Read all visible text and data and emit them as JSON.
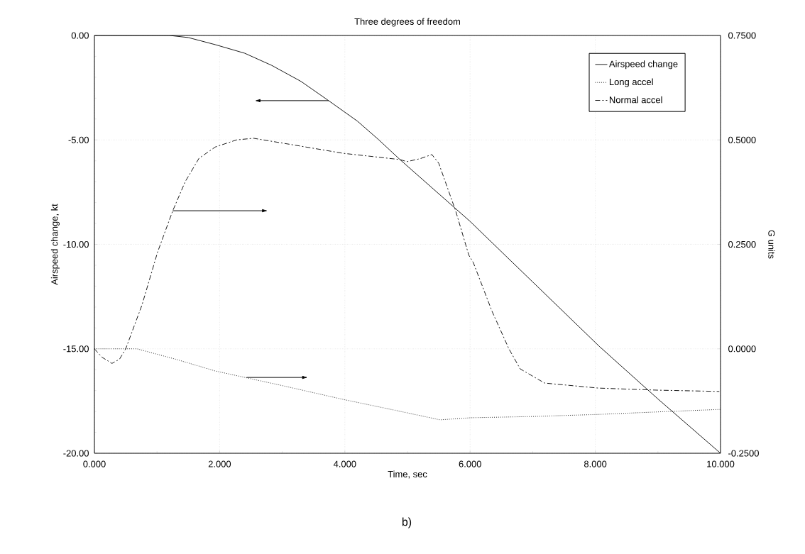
{
  "chart_data": {
    "type": "line",
    "title": "Three degrees of freedom",
    "xlabel": "Time, sec",
    "ylabel": "Airspeed change, kt",
    "y2label": "G units",
    "annotations": [
      "b)"
    ],
    "xlim": [
      0,
      10
    ],
    "xticks": [
      {
        "value": 0,
        "label": "0.000"
      },
      {
        "value": 2,
        "label": "2.000"
      },
      {
        "value": 4,
        "label": "4.000"
      },
      {
        "value": 6,
        "label": "6.000"
      },
      {
        "value": 8,
        "label": "8.000"
      },
      {
        "value": 10,
        "label": "10.000"
      }
    ],
    "ylim": [
      -20,
      0
    ],
    "yticks": [
      {
        "value": -20,
        "label": "-20.00"
      },
      {
        "value": -15,
        "label": "-15.00"
      },
      {
        "value": -10,
        "label": "-10.00"
      },
      {
        "value": -5,
        "label": "-5.00"
      },
      {
        "value": 0,
        "label": "0.00"
      }
    ],
    "y2lim": [
      -0.25,
      0.75
    ],
    "y2ticks": [
      {
        "value": -0.25,
        "label": "-0.2500"
      },
      {
        "value": 0,
        "label": "0.0000"
      },
      {
        "value": 0.25,
        "label": "0.2500"
      },
      {
        "value": 0.5,
        "label": "0.5000"
      },
      {
        "value": 0.75,
        "label": "0.7500"
      }
    ],
    "grid": true,
    "legend": "top right",
    "marker": "none",
    "series": [
      {
        "name": "Airspeed change",
        "color": "#000000",
        "line_style": "solid",
        "x": [
          0,
          1.2,
          1.5,
          1.93,
          2.4,
          2.83,
          3.3,
          3.74,
          4.2,
          4.54,
          4.88,
          6,
          7,
          8.07,
          9,
          10
        ],
        "values": [
          0,
          0,
          -0.1,
          -0.44,
          -0.85,
          -1.43,
          -2.2,
          -3.12,
          -4.1,
          -4.99,
          -5.94,
          -8.9,
          -11.8,
          -14.9,
          -17.4,
          -20
        ]
      },
      {
        "name": "Long accel",
        "color": "#000000",
        "line_style": "dotted",
        "axis": "y2",
        "x": [
          0,
          0.68,
          1.3,
          1.93,
          3,
          3.97,
          4.8,
          5.52,
          6.01,
          7,
          8.05,
          9,
          10
        ],
        "values": [
          0,
          0,
          -0.025,
          -0.053,
          -0.088,
          -0.121,
          -0.147,
          -0.17,
          -0.165,
          -0.162,
          -0.157,
          -0.151,
          -0.145
        ]
      },
      {
        "name": "Normal accel",
        "color": "#000000",
        "line_style": "dashdot",
        "axis": "y2",
        "x": [
          0,
          0.12,
          0.28,
          0.4,
          0.5,
          0.76,
          1.01,
          1.25,
          1.45,
          1.67,
          1.93,
          2.27,
          2.54,
          3.22,
          3.97,
          4.88,
          4.99,
          5.2,
          5.39,
          5.5,
          5.77,
          5.98,
          6.05,
          6.35,
          6.62,
          6.8,
          7.19,
          8.05,
          9,
          9.98
        ],
        "values": [
          0,
          -0.02,
          -0.035,
          -0.025,
          0,
          0.105,
          0.232,
          0.33,
          0.4,
          0.456,
          0.483,
          0.5,
          0.504,
          0.487,
          0.468,
          0.453,
          0.448,
          0.455,
          0.465,
          0.444,
          0.33,
          0.224,
          0.207,
          0.09,
          0.0,
          -0.048,
          -0.082,
          -0.094,
          -0.099,
          -0.102
        ]
      }
    ]
  }
}
